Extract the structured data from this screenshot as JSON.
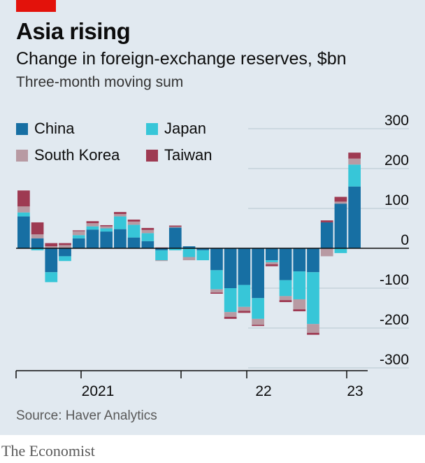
{
  "header": {
    "title": "Asia rising",
    "subtitle": "Change in foreign-exchange reserves, $bn",
    "note": "Three-month moving sum"
  },
  "legend": [
    {
      "label": "China",
      "color": "#176fa3"
    },
    {
      "label": "Japan",
      "color": "#37c6d8"
    },
    {
      "label": "South Korea",
      "color": "#b89aa3"
    },
    {
      "label": "Taiwan",
      "color": "#9e3a52"
    }
  ],
  "footer": {
    "source": "Source: Haver Analytics",
    "brand": "The Economist"
  },
  "chart_data": {
    "type": "bar",
    "stacked": true,
    "title": "Asia rising",
    "subtitle": "Change in foreign-exchange reserves, $bn",
    "ylim": [
      -300,
      300
    ],
    "yticks": [
      300,
      200,
      100,
      0,
      -100,
      -200,
      -300
    ],
    "grid": true,
    "legend_position": "top-left",
    "x_tick_labels": [
      "2021",
      "22",
      "23"
    ],
    "categories": [
      "2020-01",
      "2020-02",
      "2020-03",
      "2020-04",
      "2020-05",
      "2020-06",
      "2020-07",
      "2020-08",
      "2020-09",
      "2020-10",
      "2020-11",
      "2020-12",
      "2021-01",
      "2021-02",
      "2021-03",
      "2021-04",
      "2021-05",
      "2021-06",
      "2021-07",
      "2021-08",
      "2021-09",
      "2021-10",
      "2021-11",
      "2021-12",
      "2022-01",
      "2022-02",
      "2022-03",
      "2022-04",
      "2022-05",
      "2022-06",
      "2022-07",
      "2022-08",
      "2022-09",
      "2022-10",
      "2022-11",
      "2022-12",
      "2023-01"
    ],
    "series": [
      {
        "name": "China",
        "color": "#176fa3",
        "values": [
          80,
          25,
          -60,
          -20,
          25,
          47,
          42,
          48,
          27,
          18,
          -5,
          52,
          5,
          -5,
          -55,
          -100,
          -92,
          -125,
          -30,
          -80,
          -58,
          -60,
          65,
          112,
          155,
          0,
          0,
          0,
          0,
          0,
          0,
          0,
          0,
          0,
          0,
          0,
          0
        ]
      },
      {
        "name": "Japan",
        "color": "#37c6d8",
        "values": [
          10,
          -5,
          -25,
          -12,
          8,
          8,
          8,
          32,
          32,
          20,
          -25,
          -5,
          -22,
          -25,
          -48,
          -60,
          -55,
          -52,
          -5,
          -40,
          -70,
          -130,
          0,
          -12,
          55,
          0,
          0,
          0,
          0,
          0,
          0,
          0,
          0,
          0,
          0,
          0,
          0
        ]
      },
      {
        "name": "South Korea",
        "color": "#b89aa3",
        "values": [
          15,
          10,
          5,
          8,
          10,
          8,
          5,
          6,
          8,
          8,
          -2,
          2,
          -8,
          0,
          -8,
          -12,
          -10,
          -15,
          -5,
          -10,
          -25,
          -22,
          -20,
          5,
          15,
          0,
          0,
          0,
          0,
          0,
          0,
          0,
          0,
          0,
          0,
          0,
          0
        ]
      },
      {
        "name": "Taiwan",
        "color": "#9e3a52",
        "values": [
          40,
          30,
          8,
          5,
          2,
          5,
          3,
          5,
          5,
          5,
          2,
          3,
          0,
          0,
          -3,
          -5,
          -5,
          -3,
          -5,
          -5,
          -5,
          -5,
          5,
          12,
          15,
          0,
          0,
          0,
          0,
          0,
          0,
          0,
          0,
          0,
          0,
          0,
          0
        ]
      }
    ]
  }
}
